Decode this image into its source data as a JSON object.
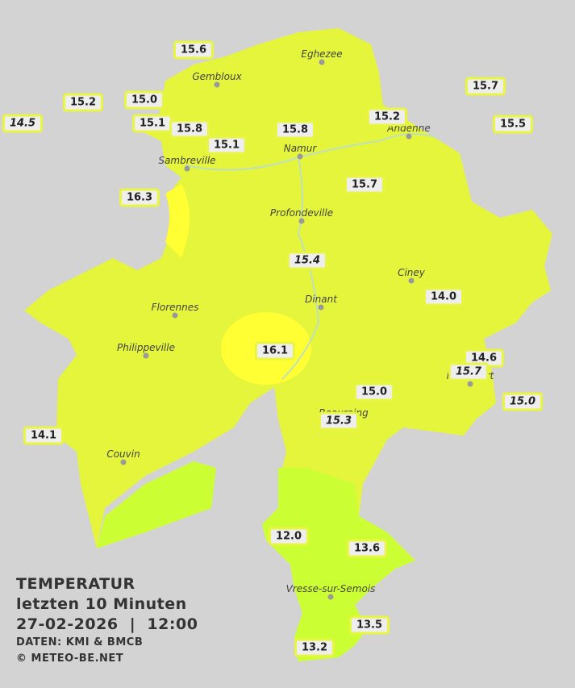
{
  "towns": [
    "Eghezee",
    "Gembloux",
    "Andenne",
    "Namur",
    "Sambreville",
    "Profondeville",
    "Ciney",
    "Dinant",
    "Florennes",
    "Philippeville",
    "Rochefort",
    "Beauraing",
    "Couvin",
    "Vresse-sur-Semois"
  ],
  "stations": [
    {
      "label": "15.6"
    },
    {
      "label": "15.2"
    },
    {
      "label": "15.0"
    },
    {
      "label": "14.5",
      "italic": true
    },
    {
      "label": "15.1"
    },
    {
      "label": "15.8"
    },
    {
      "label": "15.1"
    },
    {
      "label": "15.8"
    },
    {
      "label": "15.2"
    },
    {
      "label": "15.7"
    },
    {
      "label": "15.5"
    },
    {
      "label": "16.3"
    },
    {
      "label": "15.7"
    },
    {
      "label": "15.4",
      "italic": true
    },
    {
      "label": "14.0"
    },
    {
      "label": "16.1"
    },
    {
      "label": "14.6"
    },
    {
      "label": "15.7",
      "italic": true
    },
    {
      "label": "15.0"
    },
    {
      "label": "15.0",
      "italic": true
    },
    {
      "label": "15.3",
      "italic": true
    },
    {
      "label": "14.1"
    },
    {
      "label": "12.0"
    },
    {
      "label": "13.6"
    },
    {
      "label": "13.5"
    },
    {
      "label": "13.2"
    }
  ],
  "legend": {
    "title": "TEMPERATUR",
    "period": "letzten 10 Minuten",
    "datetime": "27-02-2026  |  12:00",
    "source": "DATEN: KMI & BMCB",
    "copyright": "© METEO-BE.NET"
  }
}
